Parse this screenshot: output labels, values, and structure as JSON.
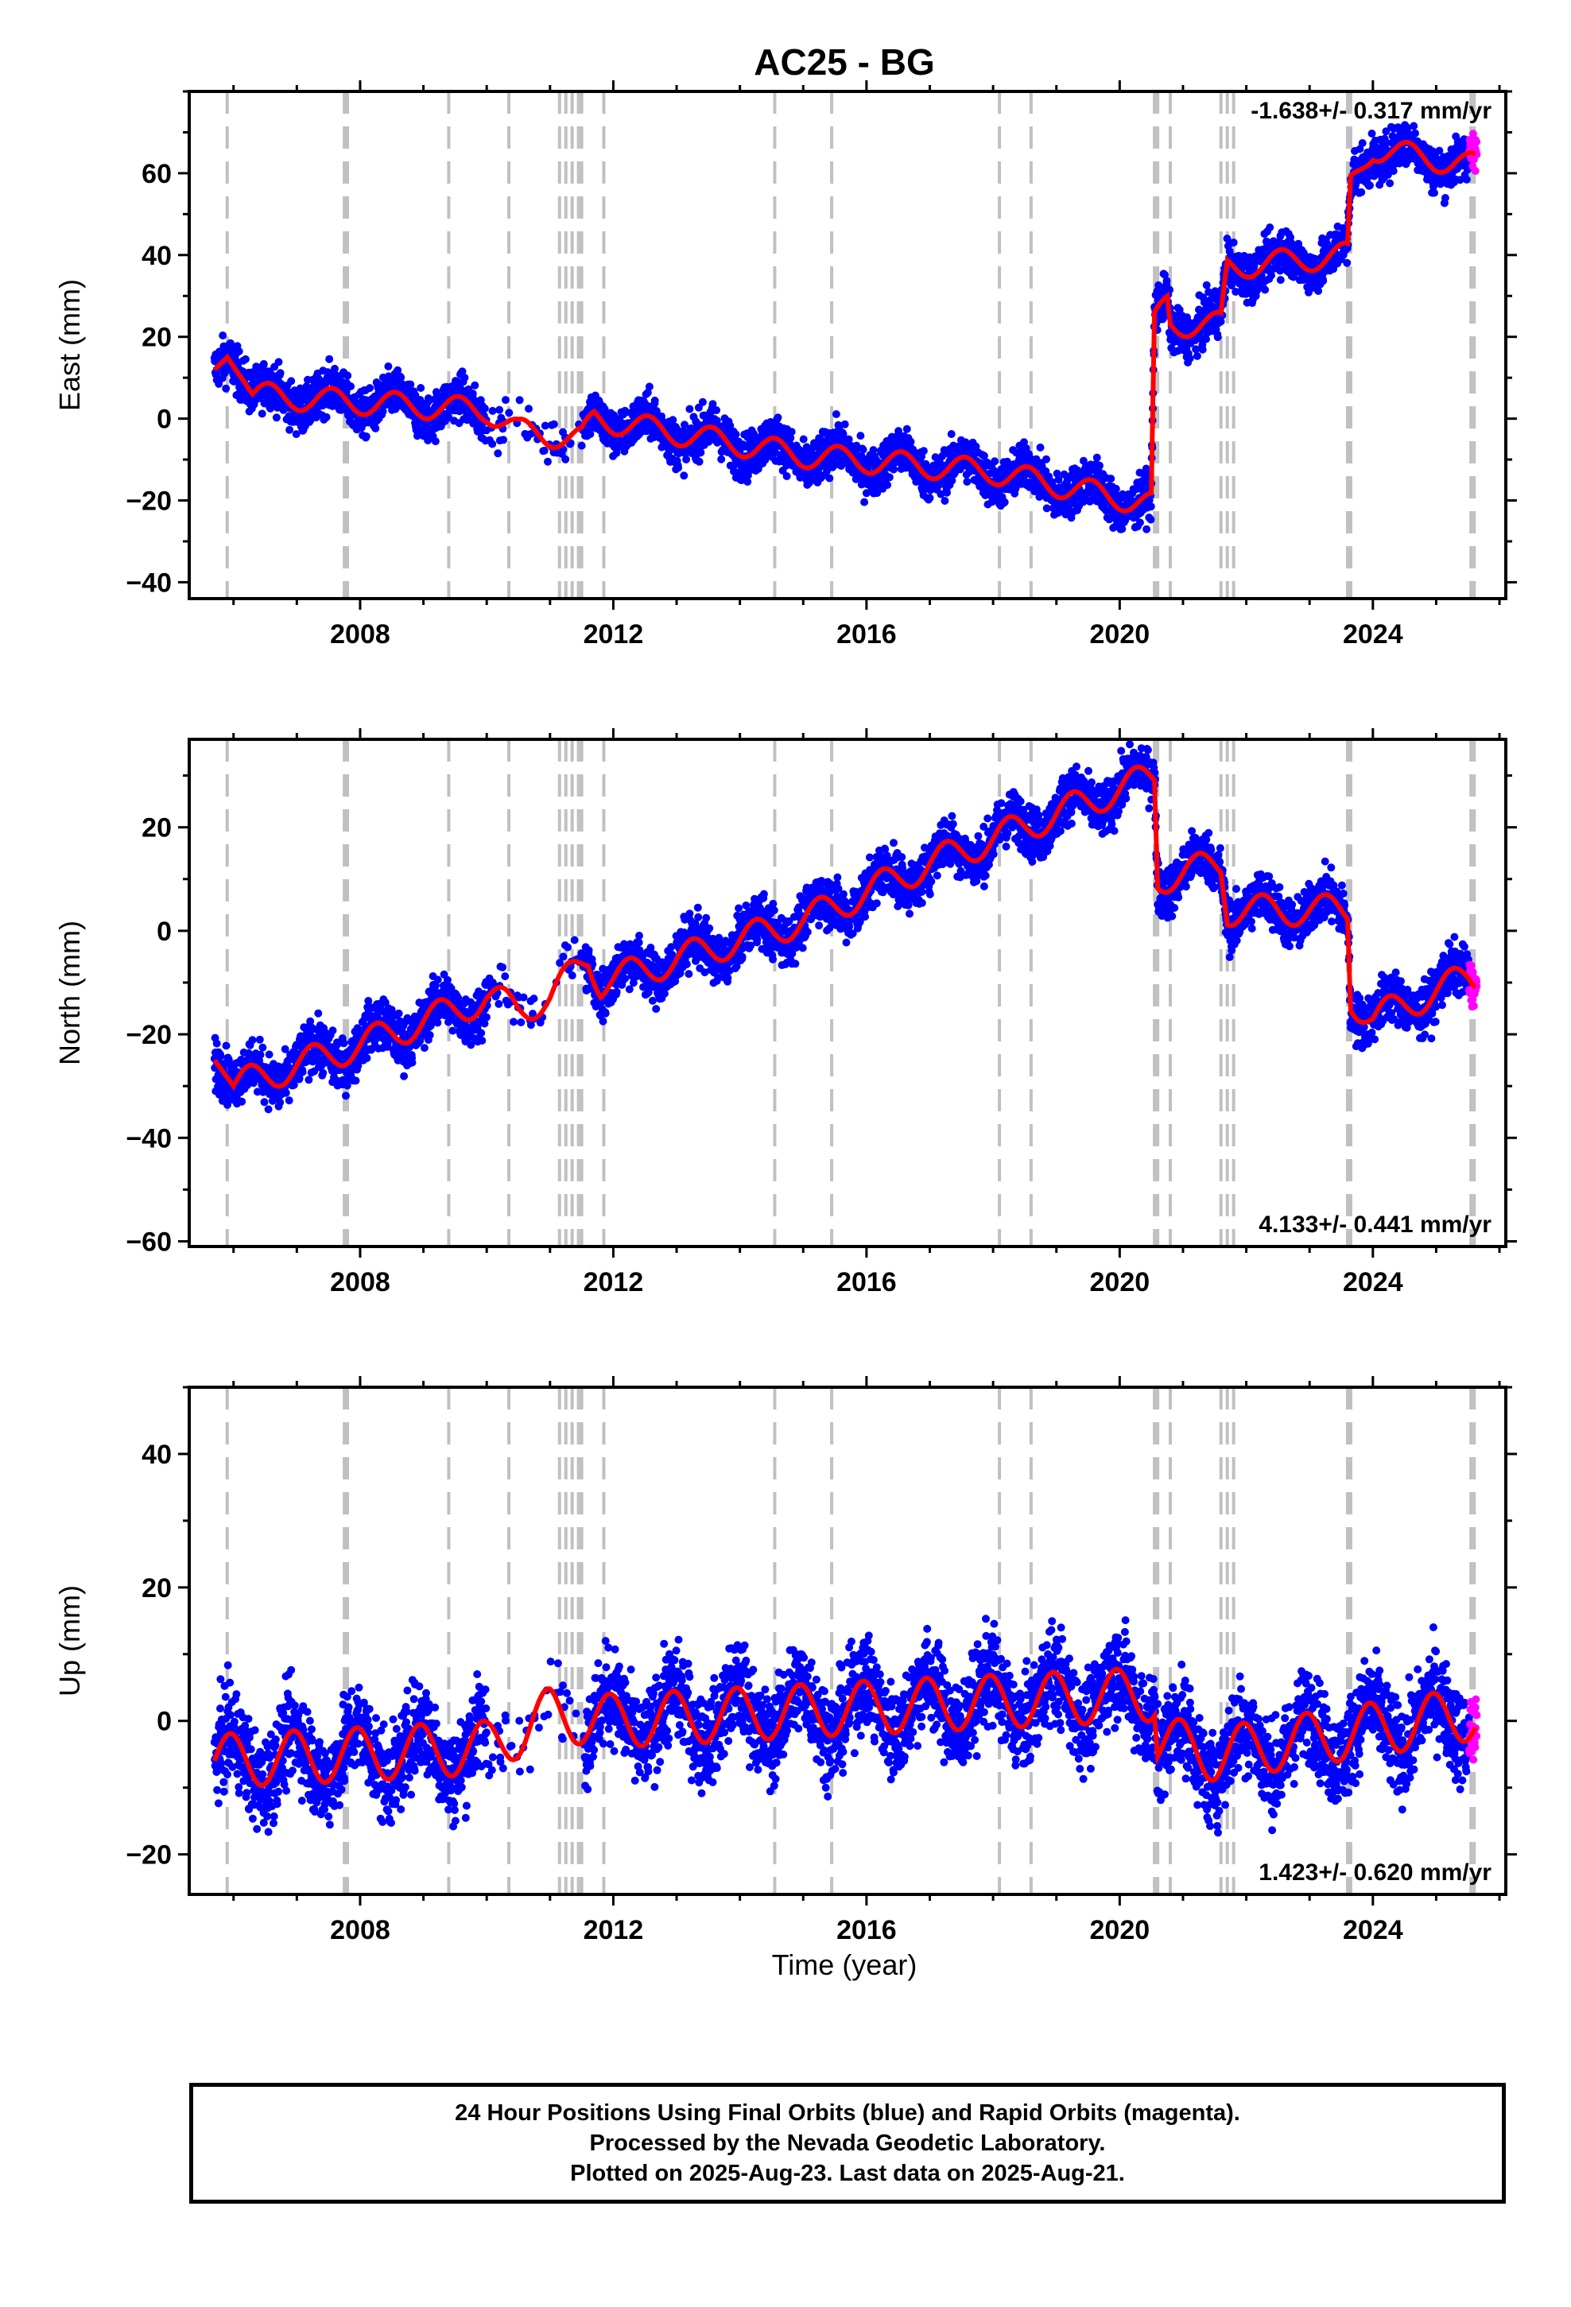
{
  "figure": {
    "title": "AC25 - BG",
    "xlabel": "Time (year)"
  },
  "footer": {
    "line1": "24 Hour Positions Using Final Orbits (blue) and Rapid Orbits (magenta).",
    "line2": "Processed by the Nevada Geodetic Laboratory.",
    "line3": "Plotted on 2025-Aug-23. Last data on 2025-Aug-21."
  },
  "colors": {
    "final_orbits": "#0000ff",
    "rapid_orbits": "#ff00ff",
    "model": "#ff0000",
    "event_lines": "#c0c0c0"
  },
  "chart_data": [
    {
      "type": "scatter",
      "panel": "east",
      "ylabel": "East (mm)",
      "rate": "-1.638+/- 0.317 mm/yr",
      "rate_position": "top-right",
      "xlim": [
        2005.3,
        2026.1
      ],
      "ylim": [
        -44,
        80
      ],
      "xticks": [
        2008,
        2012,
        2016,
        2020,
        2024
      ],
      "yticks": [
        -40,
        -20,
        0,
        20,
        40,
        60
      ],
      "model": {
        "trend": [
          [
            2005.7,
            12
          ],
          [
            2005.9,
            15
          ],
          [
            2006.3,
            6
          ],
          [
            2007.0,
            5
          ],
          [
            2009.0,
            3
          ],
          [
            2010.0,
            2
          ],
          [
            2010.5,
            -3
          ],
          [
            2011.5,
            -5
          ],
          [
            2011.7,
            0
          ],
          [
            2015.0,
            -9
          ],
          [
            2018.0,
            -13
          ],
          [
            2020.5,
            -21
          ],
          [
            2020.55,
            23
          ],
          [
            2020.75,
            29
          ],
          [
            2020.8,
            23
          ],
          [
            2021.6,
            23
          ],
          [
            2021.7,
            37
          ],
          [
            2023.6,
            40
          ],
          [
            2023.65,
            57
          ],
          [
            2024.0,
            66
          ],
          [
            2025.5,
            62
          ]
        ],
        "seasonal_amplitude": 3,
        "seasonal_start": 2006.3
      },
      "scatter_spread": 4
    },
    {
      "type": "scatter",
      "panel": "north",
      "ylabel": "North (mm)",
      "rate": "4.133+/- 0.441 mm/yr",
      "rate_position": "bottom-right",
      "xlim": [
        2005.3,
        2026.1
      ],
      "ylim": [
        -61,
        37
      ],
      "xticks": [
        2008,
        2012,
        2016,
        2020,
        2024
      ],
      "yticks": [
        -60,
        -40,
        -20,
        0,
        20
      ],
      "model": {
        "trend": [
          [
            2005.7,
            -25
          ],
          [
            2006.0,
            -30
          ],
          [
            2007.0,
            -26
          ],
          [
            2008.0,
            -22
          ],
          [
            2010.0,
            -13
          ],
          [
            2010.5,
            -15
          ],
          [
            2011.0,
            -13
          ],
          [
            2011.6,
            -5
          ],
          [
            2011.8,
            -10
          ],
          [
            2015.0,
            2
          ],
          [
            2017.0,
            13
          ],
          [
            2020.55,
            30
          ],
          [
            2020.6,
            10
          ],
          [
            2021.6,
            13
          ],
          [
            2021.7,
            4
          ],
          [
            2023.6,
            4
          ],
          [
            2023.65,
            -13
          ],
          [
            2024.0,
            -17
          ],
          [
            2025.5,
            -9
          ]
        ],
        "seasonal_amplitude": 3,
        "seasonal_start": 2006.0
      },
      "scatter_spread": 3.5
    },
    {
      "type": "scatter",
      "panel": "up",
      "ylabel": "Up (mm)",
      "rate": "1.423+/- 0.620 mm/yr",
      "rate_position": "bottom-right",
      "xlim": [
        2005.3,
        2026.1
      ],
      "ylim": [
        -26,
        50
      ],
      "xticks": [
        2008,
        2012,
        2016,
        2020,
        2024
      ],
      "yticks": [
        -20,
        0,
        20,
        40
      ],
      "model": {
        "trend": [
          [
            2005.7,
            -6
          ],
          [
            2008.0,
            -5
          ],
          [
            2010.0,
            -4
          ],
          [
            2011.0,
            1
          ],
          [
            2012.0,
            0
          ],
          [
            2016.0,
            2
          ],
          [
            2020.55,
            4
          ],
          [
            2020.6,
            -3
          ],
          [
            2021.5,
            -5
          ],
          [
            2023.5,
            -2
          ],
          [
            2025.5,
            1
          ]
        ],
        "seasonal_amplitude": 4,
        "seasonal_start": 2005.7
      },
      "scatter_spread": 5
    }
  ],
  "event_lines": [
    2005.9,
    2007.75,
    2007.8,
    2009.4,
    2010.35,
    2011.15,
    2011.25,
    2011.35,
    2011.45,
    2011.5,
    2011.85,
    2014.55,
    2015.45,
    2018.1,
    2018.6,
    2020.55,
    2020.6,
    2020.8,
    2021.6,
    2021.7,
    2021.8,
    2023.6,
    2023.65,
    2025.55,
    2025.6
  ]
}
